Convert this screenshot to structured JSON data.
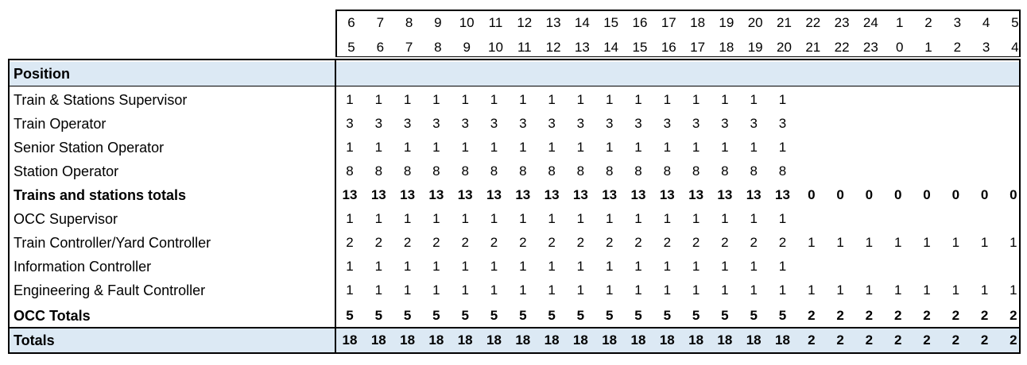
{
  "header": {
    "start_hours": [
      "6",
      "7",
      "8",
      "9",
      "10",
      "11",
      "12",
      "13",
      "14",
      "15",
      "16",
      "17",
      "18",
      "19",
      "20",
      "21",
      "22",
      "23",
      "24",
      "1",
      "2",
      "3",
      "4",
      "5"
    ],
    "end_hours": [
      "5",
      "6",
      "7",
      "8",
      "9",
      "10",
      "11",
      "12",
      "13",
      "14",
      "15",
      "16",
      "17",
      "18",
      "19",
      "20",
      "21",
      "22",
      "23",
      "0",
      "1",
      "2",
      "3",
      "4"
    ]
  },
  "position_label": "Position",
  "rows": [
    {
      "label": "Train & Stations Supervisor",
      "bold": false,
      "values": [
        "1",
        "1",
        "1",
        "1",
        "1",
        "1",
        "1",
        "1",
        "1",
        "1",
        "1",
        "1",
        "1",
        "1",
        "1",
        "1",
        "",
        "",
        "",
        "",
        "",
        "",
        "",
        ""
      ]
    },
    {
      "label": "Train Operator",
      "bold": false,
      "values": [
        "3",
        "3",
        "3",
        "3",
        "3",
        "3",
        "3",
        "3",
        "3",
        "3",
        "3",
        "3",
        "3",
        "3",
        "3",
        "3",
        "",
        "",
        "",
        "",
        "",
        "",
        "",
        ""
      ]
    },
    {
      "label": "Senior Station Operator",
      "bold": false,
      "values": [
        "1",
        "1",
        "1",
        "1",
        "1",
        "1",
        "1",
        "1",
        "1",
        "1",
        "1",
        "1",
        "1",
        "1",
        "1",
        "1",
        "",
        "",
        "",
        "",
        "",
        "",
        "",
        ""
      ]
    },
    {
      "label": "Station Operator",
      "bold": false,
      "values": [
        "8",
        "8",
        "8",
        "8",
        "8",
        "8",
        "8",
        "8",
        "8",
        "8",
        "8",
        "8",
        "8",
        "8",
        "8",
        "8",
        "",
        "",
        "",
        "",
        "",
        "",
        "",
        ""
      ]
    },
    {
      "label": "Trains and stations totals",
      "bold": true,
      "values": [
        "13",
        "13",
        "13",
        "13",
        "13",
        "13",
        "13",
        "13",
        "13",
        "13",
        "13",
        "13",
        "13",
        "13",
        "13",
        "13",
        "0",
        "0",
        "0",
        "0",
        "0",
        "0",
        "0",
        "0"
      ]
    },
    {
      "label": "OCC Supervisor",
      "bold": false,
      "values": [
        "1",
        "1",
        "1",
        "1",
        "1",
        "1",
        "1",
        "1",
        "1",
        "1",
        "1",
        "1",
        "1",
        "1",
        "1",
        "1",
        "",
        "",
        "",
        "",
        "",
        "",
        "",
        ""
      ]
    },
    {
      "label": "Train Controller/Yard Controller",
      "bold": false,
      "values": [
        "2",
        "2",
        "2",
        "2",
        "2",
        "2",
        "2",
        "2",
        "2",
        "2",
        "2",
        "2",
        "2",
        "2",
        "2",
        "2",
        "1",
        "1",
        "1",
        "1",
        "1",
        "1",
        "1",
        "1"
      ]
    },
    {
      "label": "Information Controller",
      "bold": false,
      "values": [
        "1",
        "1",
        "1",
        "1",
        "1",
        "1",
        "1",
        "1",
        "1",
        "1",
        "1",
        "1",
        "1",
        "1",
        "1",
        "1",
        "",
        "",
        "",
        "",
        "",
        "",
        "",
        ""
      ]
    },
    {
      "label": "Engineering & Fault Controller",
      "bold": false,
      "values": [
        "1",
        "1",
        "1",
        "1",
        "1",
        "1",
        "1",
        "1",
        "1",
        "1",
        "1",
        "1",
        "1",
        "1",
        "1",
        "1",
        "1",
        "1",
        "1",
        "1",
        "1",
        "1",
        "1",
        "1"
      ]
    },
    {
      "label": "OCC Totals",
      "bold": true,
      "values": [
        "5",
        "5",
        "5",
        "5",
        "5",
        "5",
        "5",
        "5",
        "5",
        "5",
        "5",
        "5",
        "5",
        "5",
        "5",
        "5",
        "2",
        "2",
        "2",
        "2",
        "2",
        "2",
        "2",
        "2"
      ]
    }
  ],
  "totals": {
    "label": "Totals",
    "values": [
      "18",
      "18",
      "18",
      "18",
      "18",
      "18",
      "18",
      "18",
      "18",
      "18",
      "18",
      "18",
      "18",
      "18",
      "18",
      "18",
      "2",
      "2",
      "2",
      "2",
      "2",
      "2",
      "2",
      "2"
    ]
  },
  "colors": {
    "band": "#dce9f4",
    "border": "#000000"
  }
}
